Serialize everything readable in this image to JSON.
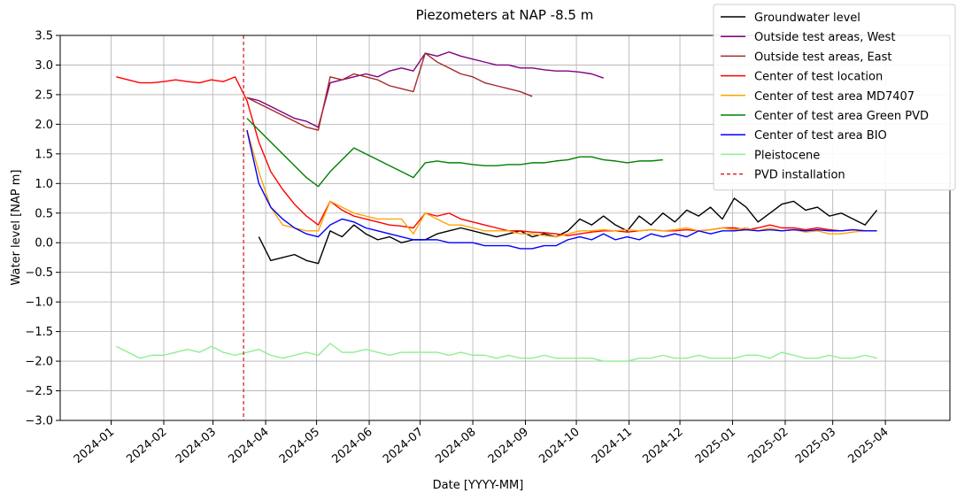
{
  "chart_data": {
    "type": "line",
    "title": "Piezometers at NAP -8.5 m",
    "xlabel": "Date [YYYY-MM]",
    "ylabel": "Water level [NAP m]",
    "x": [
      "2024-01-04",
      "2024-01-11",
      "2024-01-18",
      "2024-01-25",
      "2024-02-01",
      "2024-02-08",
      "2024-02-15",
      "2024-02-22",
      "2024-02-29",
      "2024-03-07",
      "2024-03-14",
      "2024-03-21",
      "2024-03-28",
      "2024-04-04",
      "2024-04-11",
      "2024-04-18",
      "2024-04-25",
      "2024-05-02",
      "2024-05-09",
      "2024-05-16",
      "2024-05-23",
      "2024-05-30",
      "2024-06-06",
      "2024-06-13",
      "2024-06-20",
      "2024-06-27",
      "2024-07-04",
      "2024-07-11",
      "2024-07-18",
      "2024-07-25",
      "2024-08-01",
      "2024-08-08",
      "2024-08-15",
      "2024-08-22",
      "2024-08-29",
      "2024-09-05",
      "2024-09-12",
      "2024-09-19",
      "2024-09-26",
      "2024-10-03",
      "2024-10-10",
      "2024-10-17",
      "2024-10-24",
      "2024-10-31",
      "2024-11-07",
      "2024-11-14",
      "2024-11-21",
      "2024-11-28",
      "2024-12-05",
      "2024-12-12",
      "2024-12-19",
      "2024-12-26",
      "2025-01-02",
      "2025-01-09",
      "2025-01-16",
      "2025-01-23",
      "2025-01-30",
      "2025-02-06",
      "2025-02-13",
      "2025-02-20",
      "2025-02-27",
      "2025-03-06",
      "2025-03-13",
      "2025-03-20",
      "2025-03-27"
    ],
    "series": [
      {
        "name": "Groundwater level",
        "color": "#000000",
        "values": [
          null,
          null,
          null,
          null,
          null,
          null,
          null,
          null,
          null,
          null,
          null,
          null,
          0.1,
          -0.3,
          -0.25,
          -0.2,
          -0.3,
          -0.35,
          0.2,
          0.1,
          0.3,
          0.15,
          0.05,
          0.1,
          0.0,
          0.05,
          0.05,
          0.15,
          0.2,
          0.25,
          0.2,
          0.15,
          0.1,
          0.15,
          0.2,
          0.1,
          0.15,
          0.1,
          0.2,
          0.4,
          0.3,
          0.45,
          0.3,
          0.2,
          0.45,
          0.3,
          0.5,
          0.35,
          0.55,
          0.45,
          0.6,
          0.4,
          0.75,
          0.6,
          0.35,
          0.5,
          0.65,
          0.7,
          0.55,
          0.6,
          0.45,
          0.5,
          0.4,
          0.3,
          0.55
        ]
      },
      {
        "name": "Outside test areas, West",
        "color": "#800080",
        "values": [
          null,
          null,
          null,
          null,
          null,
          null,
          null,
          null,
          null,
          null,
          null,
          2.45,
          2.4,
          2.3,
          2.2,
          2.1,
          2.05,
          1.95,
          2.7,
          2.75,
          2.8,
          2.85,
          2.8,
          2.9,
          2.95,
          2.9,
          3.2,
          3.15,
          3.22,
          3.15,
          3.1,
          3.05,
          3.0,
          3.0,
          2.95,
          2.95,
          2.92,
          2.9,
          2.9,
          2.88,
          2.85,
          2.78,
          null,
          null,
          null,
          null,
          null,
          null,
          null,
          null,
          null,
          null,
          null,
          null,
          null,
          null,
          null,
          null,
          null,
          null,
          null,
          null,
          null,
          null,
          null
        ]
      },
      {
        "name": "Outside test areas, East",
        "color": "#a52a2a",
        "values": [
          null,
          null,
          null,
          null,
          null,
          null,
          null,
          null,
          null,
          null,
          null,
          2.45,
          2.35,
          2.25,
          2.15,
          2.05,
          1.95,
          1.9,
          2.8,
          2.75,
          2.85,
          2.8,
          2.75,
          2.65,
          2.6,
          2.55,
          3.2,
          3.05,
          2.95,
          2.85,
          2.8,
          2.7,
          2.65,
          2.6,
          2.55,
          2.47,
          null,
          null,
          null,
          null,
          null,
          null,
          null,
          null,
          null,
          null,
          null,
          null,
          null,
          null,
          null,
          null,
          null,
          null,
          null,
          null,
          null,
          null,
          null,
          null,
          null,
          null,
          null,
          null,
          null
        ]
      },
      {
        "name": "Center of test location",
        "color": "#ff0000",
        "values": [
          2.8,
          2.75,
          2.7,
          2.7,
          2.72,
          2.75,
          2.72,
          2.7,
          2.75,
          2.72,
          2.8,
          2.4,
          1.7,
          1.2,
          0.9,
          0.65,
          0.45,
          0.3,
          0.7,
          0.55,
          0.45,
          0.4,
          0.35,
          0.3,
          0.28,
          0.25,
          0.5,
          0.45,
          0.5,
          0.4,
          0.35,
          0.3,
          0.25,
          0.2,
          0.2,
          0.18,
          0.17,
          0.15,
          0.12,
          0.15,
          0.18,
          0.2,
          0.2,
          0.18,
          0.2,
          0.22,
          0.2,
          0.2,
          0.22,
          0.2,
          0.22,
          0.25,
          0.25,
          0.22,
          0.25,
          0.3,
          0.25,
          0.25,
          0.22,
          0.25,
          0.22,
          0.2,
          0.22,
          0.2,
          0.2
        ]
      },
      {
        "name": "Center of test area MD7407",
        "color": "#ffa500",
        "values": [
          null,
          null,
          null,
          null,
          null,
          null,
          null,
          null,
          null,
          null,
          null,
          1.9,
          1.2,
          0.6,
          0.3,
          0.25,
          0.2,
          0.2,
          0.7,
          0.6,
          0.5,
          0.45,
          0.4,
          0.4,
          0.4,
          0.15,
          0.5,
          0.4,
          0.3,
          0.3,
          0.25,
          0.2,
          0.2,
          0.2,
          0.15,
          0.15,
          0.12,
          0.1,
          0.15,
          0.2,
          0.2,
          0.22,
          0.2,
          0.22,
          0.2,
          0.22,
          0.2,
          0.22,
          0.25,
          0.2,
          0.22,
          0.25,
          0.22,
          0.25,
          0.2,
          0.25,
          0.2,
          0.22,
          0.18,
          0.2,
          0.15,
          0.15,
          0.18,
          0.2,
          0.2
        ]
      },
      {
        "name": "Center of test area Green PVD",
        "color": "#008000",
        "values": [
          null,
          null,
          null,
          null,
          null,
          null,
          null,
          null,
          null,
          null,
          null,
          2.1,
          1.9,
          1.7,
          1.5,
          1.3,
          1.1,
          0.95,
          1.2,
          1.4,
          1.6,
          1.5,
          1.4,
          1.3,
          1.2,
          1.1,
          1.35,
          1.38,
          1.35,
          1.35,
          1.32,
          1.3,
          1.3,
          1.32,
          1.32,
          1.35,
          1.35,
          1.38,
          1.4,
          1.45,
          1.45,
          1.4,
          1.38,
          1.35,
          1.38,
          1.38,
          1.4,
          null,
          null,
          null,
          null,
          null,
          null,
          null,
          null,
          null,
          null,
          null,
          null,
          null,
          null,
          null,
          null,
          null,
          null
        ]
      },
      {
        "name": "Center of test area BIO",
        "color": "#0000ff",
        "values": [
          null,
          null,
          null,
          null,
          null,
          null,
          null,
          null,
          null,
          null,
          null,
          1.9,
          1.0,
          0.6,
          0.4,
          0.25,
          0.15,
          0.1,
          0.3,
          0.4,
          0.35,
          0.25,
          0.2,
          0.15,
          0.1,
          0.05,
          0.05,
          0.05,
          0.0,
          0.0,
          0.0,
          -0.05,
          -0.05,
          -0.05,
          -0.1,
          -0.1,
          -0.05,
          -0.05,
          0.05,
          0.1,
          0.05,
          0.15,
          0.05,
          0.1,
          0.05,
          0.15,
          0.1,
          0.15,
          0.1,
          0.2,
          0.15,
          0.2,
          0.2,
          0.22,
          0.2,
          0.22,
          0.2,
          0.22,
          0.2,
          0.22,
          0.2,
          0.2,
          0.22,
          0.2,
          0.2
        ]
      },
      {
        "name": "Pleistocene",
        "color": "#90ee90",
        "values": [
          -1.75,
          -1.85,
          -1.95,
          -1.9,
          -1.9,
          -1.85,
          -1.8,
          -1.85,
          -1.75,
          -1.85,
          -1.9,
          -1.85,
          -1.8,
          -1.9,
          -1.95,
          -1.9,
          -1.85,
          -1.9,
          -1.7,
          -1.85,
          -1.85,
          -1.8,
          -1.85,
          -1.9,
          -1.85,
          -1.85,
          -1.85,
          -1.85,
          -1.9,
          -1.85,
          -1.9,
          -1.9,
          -1.95,
          -1.9,
          -1.95,
          -1.95,
          -1.9,
          -1.95,
          -1.95,
          -1.95,
          -1.95,
          -2.0,
          -2.0,
          -2.0,
          -1.95,
          -1.95,
          -1.9,
          -1.95,
          -1.95,
          -1.9,
          -1.95,
          -1.95,
          -1.95,
          -1.9,
          -1.9,
          -1.95,
          -1.85,
          -1.9,
          -1.95,
          -1.95,
          -1.9,
          -1.95,
          -1.95,
          -1.9,
          -1.95
        ]
      }
    ],
    "vlines": [
      {
        "name": "PVD installation",
        "x": "2024-03-19",
        "color": "#d62728",
        "dashed": true
      }
    ],
    "xlim": [
      "2023-12-02",
      "2025-05-09"
    ],
    "xticks": [
      "2024-01",
      "2024-02",
      "2024-03",
      "2024-04",
      "2024-05",
      "2024-06",
      "2024-07",
      "2024-08",
      "2024-09",
      "2024-10",
      "2024-11",
      "2024-12",
      "2025-01",
      "2025-02",
      "2025-03",
      "2025-04"
    ],
    "ylim": [
      -3.0,
      3.5
    ],
    "yticks": [
      {
        "value": -3,
        "label": "−3.0"
      },
      {
        "value": -2.5,
        "label": "−2.5"
      },
      {
        "value": -2,
        "label": "−2.0"
      },
      {
        "value": -1.5,
        "label": "−1.5"
      },
      {
        "value": -1,
        "label": "−1.0"
      },
      {
        "value": -0.5,
        "label": "−0.5"
      },
      {
        "value": 0,
        "label": "0.0"
      },
      {
        "value": 0.5,
        "label": "0.5"
      },
      {
        "value": 1,
        "label": "1.0"
      },
      {
        "value": 1.5,
        "label": "1.5"
      },
      {
        "value": 2,
        "label": "2.0"
      },
      {
        "value": 2.5,
        "label": "2.5"
      },
      {
        "value": 3,
        "label": "3.0"
      },
      {
        "value": 3.5,
        "label": "3.5"
      }
    ],
    "grid": true,
    "legend": "upper right"
  }
}
